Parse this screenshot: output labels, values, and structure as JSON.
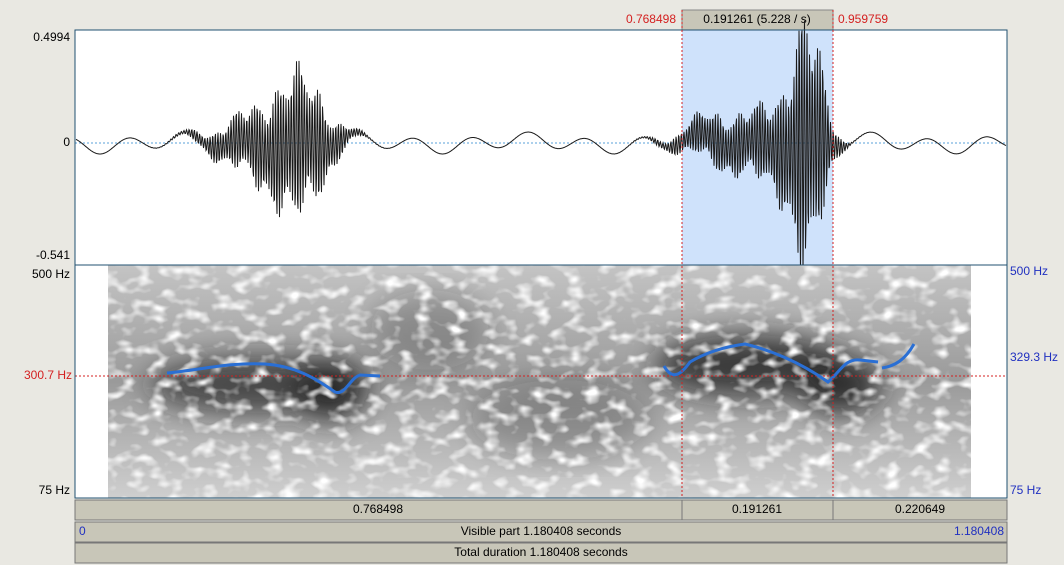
{
  "selection_bar": {
    "start": "0.768498",
    "duration": "0.191261 (5.228 / s)",
    "end": "0.959759"
  },
  "waveform": {
    "max": "0.4994",
    "zero": "0",
    "min": "-0.541"
  },
  "spectrogram": {
    "left": {
      "top": "500 Hz",
      "cursor": "300.7 Hz",
      "bottom": "75 Hz"
    },
    "right": {
      "top": "500 Hz",
      "pitch": "329.3 Hz",
      "bottom": "75 Hz"
    }
  },
  "segments": [
    "0.768498",
    "0.191261",
    "0.220649"
  ],
  "visible": {
    "start": "0",
    "label": "Visible part 1.180408 seconds",
    "end": "1.180408"
  },
  "total": "Total duration 1.180408 seconds"
}
